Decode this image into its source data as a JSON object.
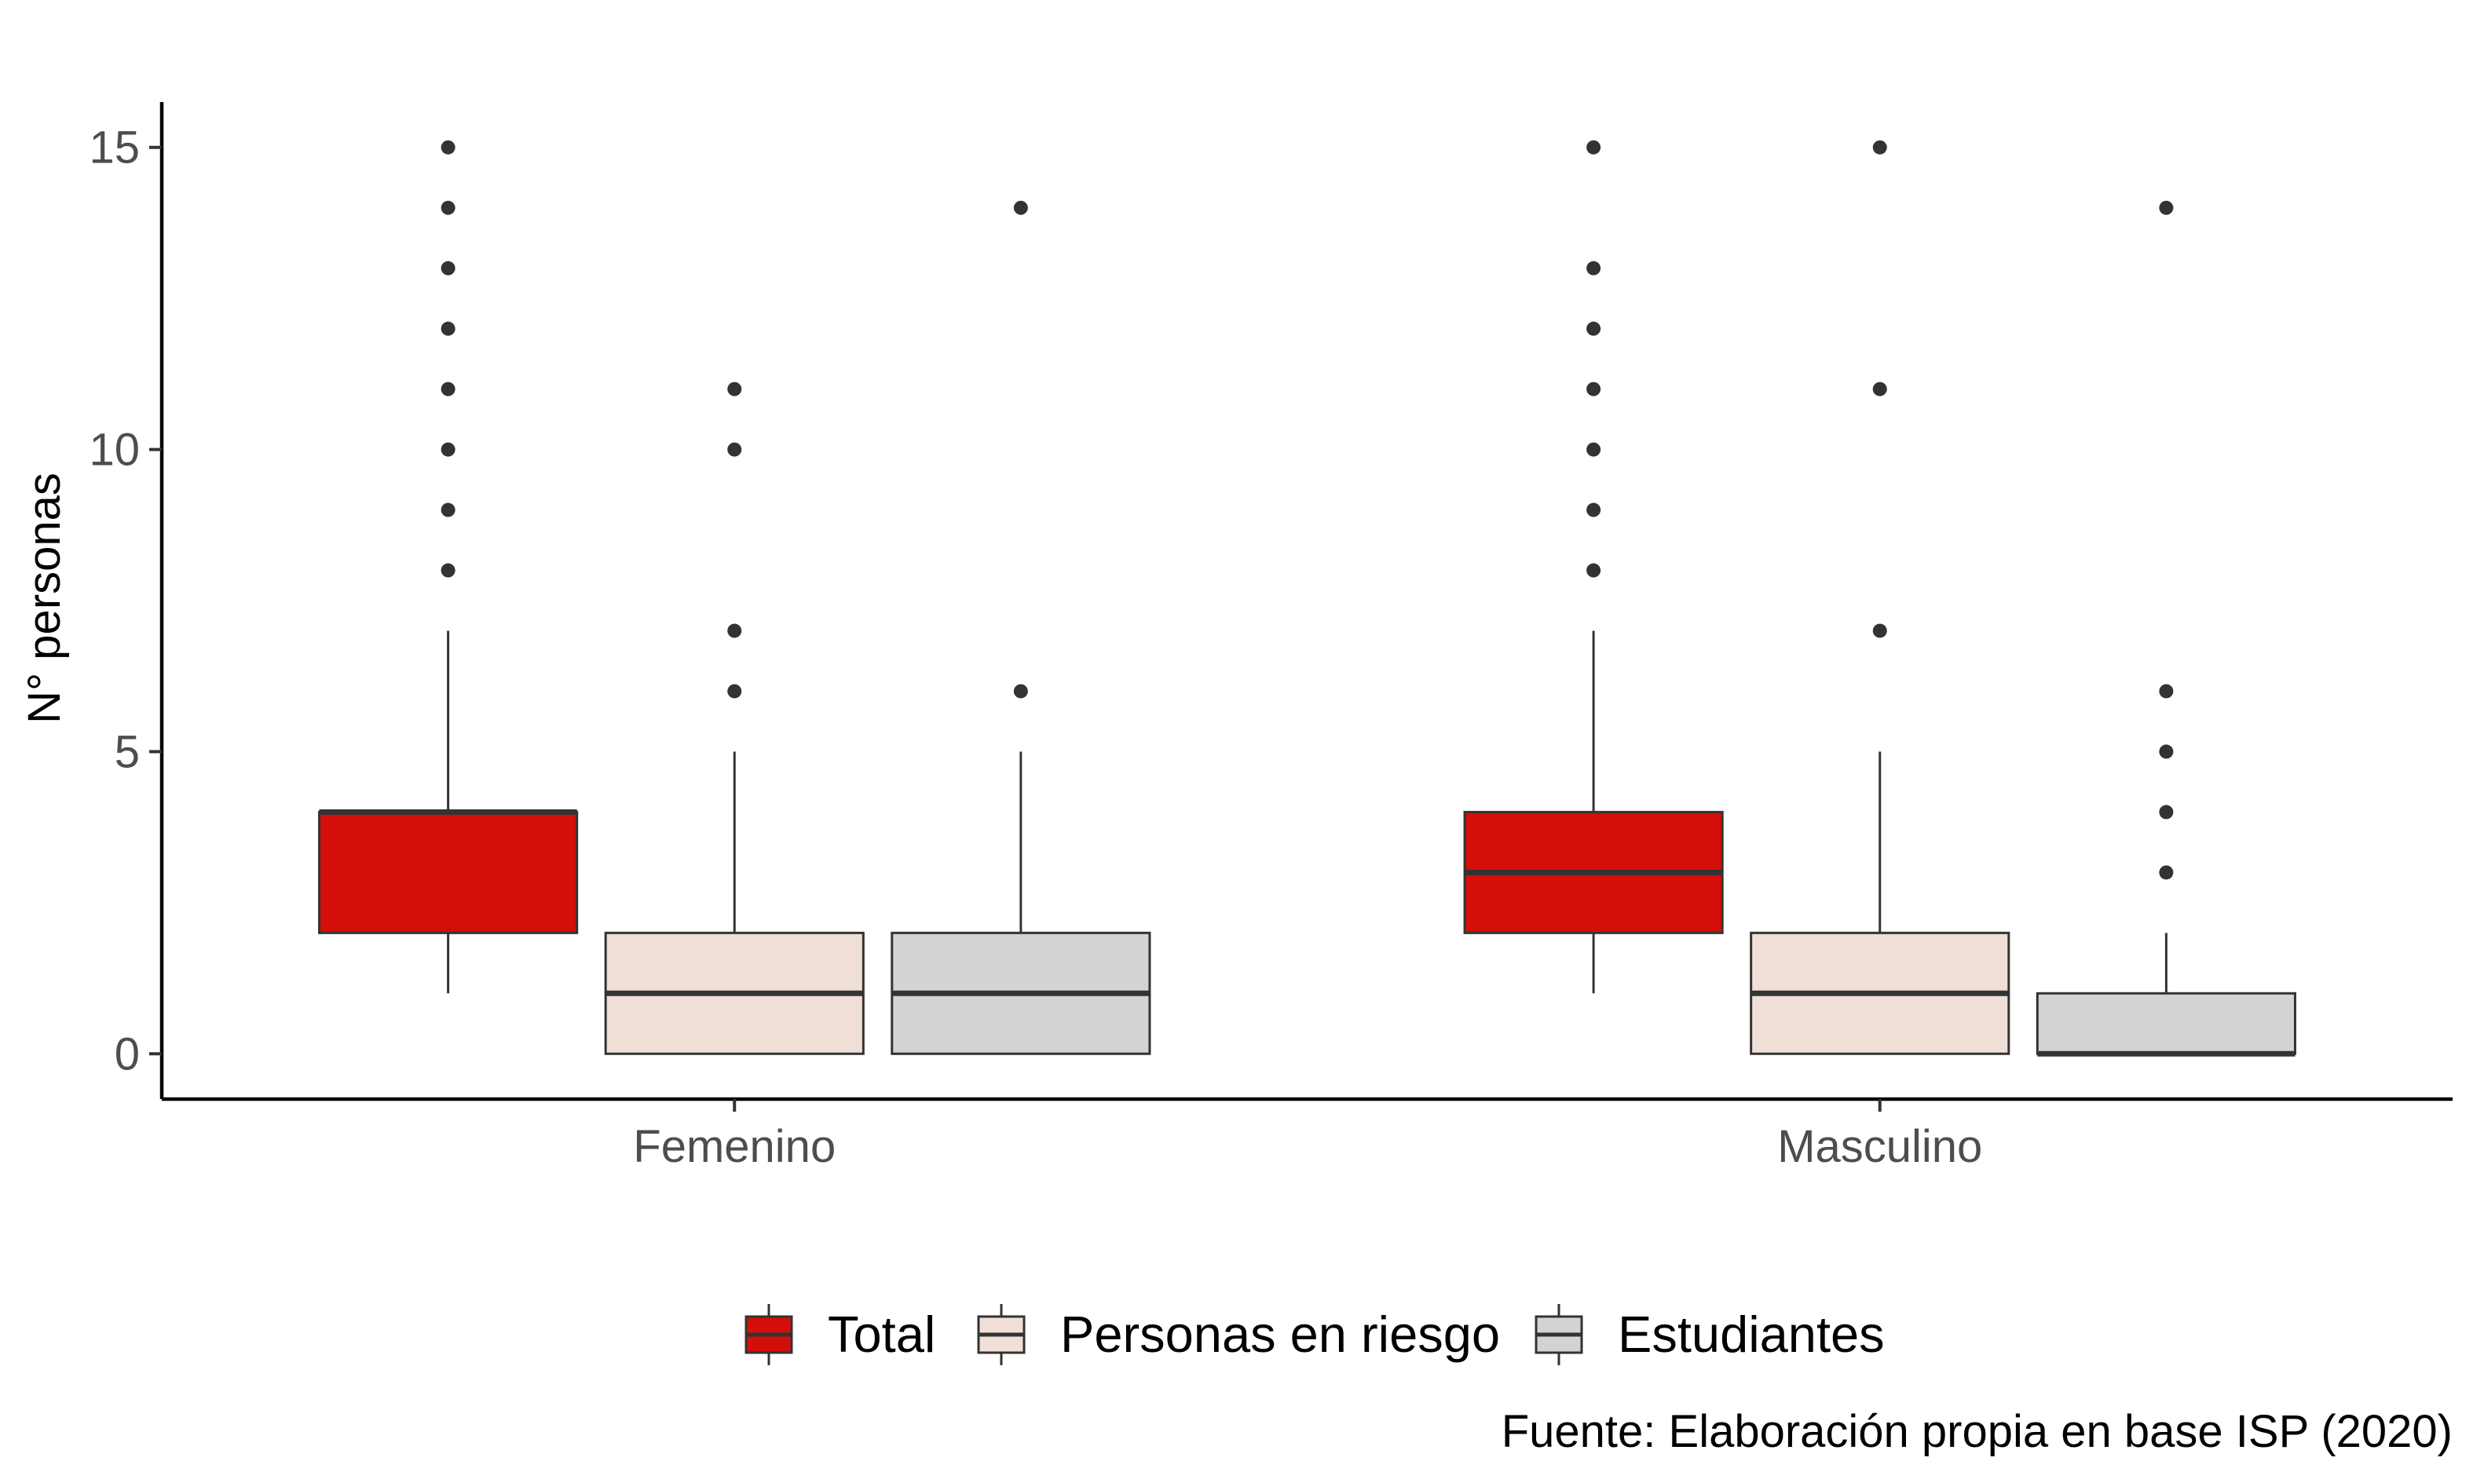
{
  "chart_data": {
    "type": "boxplot",
    "ylabel": "N° personas",
    "xlabel": "",
    "ylim": [
      -0.75,
      15.75
    ],
    "yticks": [
      0,
      5,
      10,
      15
    ],
    "categories": [
      "Femenino",
      "Masculino"
    ],
    "legend_position": "bottom",
    "grid": false,
    "series": [
      {
        "name": "Total",
        "color": "#d40f0a",
        "boxes": [
          {
            "category": "Femenino",
            "min": 1,
            "q1": 2,
            "median": 4,
            "q3": 4,
            "max": 7,
            "outliers": [
              8,
              9,
              10,
              11,
              12,
              13,
              14,
              15
            ]
          },
          {
            "category": "Masculino",
            "min": 1,
            "q1": 2,
            "median": 3,
            "q3": 4,
            "max": 7,
            "outliers": [
              8,
              9,
              10,
              11,
              12,
              13,
              15
            ]
          }
        ]
      },
      {
        "name": "Personas en riesgo",
        "color": "#f0dfd6",
        "boxes": [
          {
            "category": "Femenino",
            "min": 0,
            "q1": 0,
            "median": 1,
            "q3": 2,
            "max": 5,
            "outliers": [
              6,
              7,
              10,
              11
            ]
          },
          {
            "category": "Masculino",
            "min": 0,
            "q1": 0,
            "median": 1,
            "q3": 2,
            "max": 5,
            "outliers": [
              7,
              11,
              15
            ]
          }
        ]
      },
      {
        "name": "Estudiantes",
        "color": "#d3d3d3",
        "boxes": [
          {
            "category": "Femenino",
            "min": 0,
            "q1": 0,
            "median": 1,
            "q3": 2,
            "max": 5,
            "outliers": [
              6,
              14
            ]
          },
          {
            "category": "Masculino",
            "min": 0,
            "q1": 0,
            "median": 0,
            "q3": 1,
            "max": 2,
            "outliers": [
              3,
              4,
              5,
              6,
              14
            ]
          }
        ]
      }
    ],
    "caption": "Fuente: Elaboración propia en base ISP (2020)"
  }
}
